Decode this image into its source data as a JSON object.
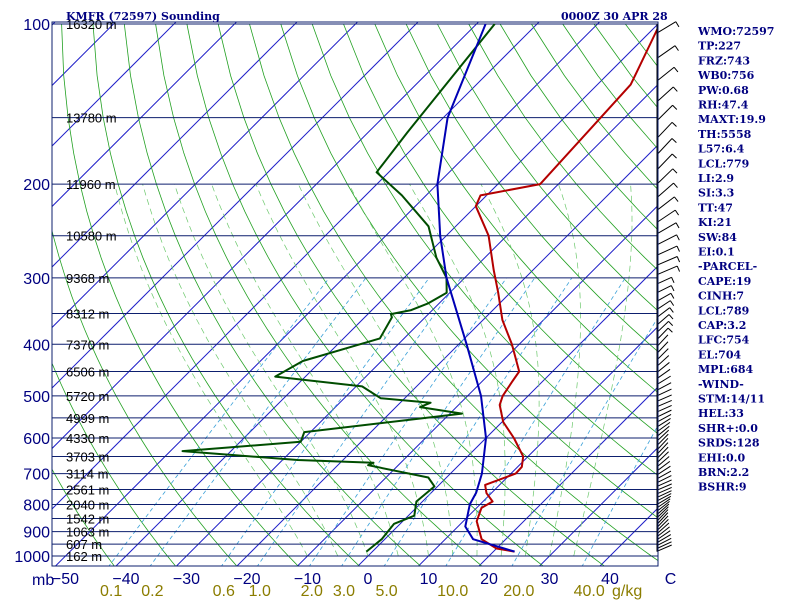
{
  "chart_data": {
    "type": "line",
    "chart_kind": "skew-T log-P sounding",
    "title_left": "KMFR (72597) Sounding",
    "title_right": "0000Z 30 APR 28",
    "pressure_unit_label": "mb",
    "mixing_ratio_unit_label": "g/kg",
    "pressure_range": [
      1000,
      100
    ],
    "temperature_range": [
      -50,
      50
    ],
    "pressure_ticks": [
      100,
      200,
      300,
      400,
      500,
      600,
      700,
      800,
      900,
      1000
    ],
    "temperature_ticks": [
      {
        "v": -50,
        "label": "−50"
      },
      {
        "v": -40,
        "label": "−40"
      },
      {
        "v": -30,
        "label": "−30"
      },
      {
        "v": -20,
        "label": "−20"
      },
      {
        "v": -10,
        "label": "−10"
      },
      {
        "v": 0,
        "label": "0"
      },
      {
        "v": 10,
        "label": "10"
      },
      {
        "v": 20,
        "label": "20"
      },
      {
        "v": 30,
        "label": "30"
      },
      {
        "v": 40,
        "label": "40"
      },
      {
        "v": 50,
        "label": "C"
      }
    ],
    "mixing_ratio_ticks": [
      {
        "v": 0.1,
        "label": "0.1"
      },
      {
        "v": 0.2,
        "label": "0.2"
      },
      {
        "v": 0.6,
        "label": "0.6"
      },
      {
        "v": 1.0,
        "label": "1.0"
      },
      {
        "v": 2.0,
        "label": "2.0"
      },
      {
        "v": 3.0,
        "label": "3.0"
      },
      {
        "v": 5.0,
        "label": "5.0"
      },
      {
        "v": 10.0,
        "label": "10.0"
      },
      {
        "v": 20.0,
        "label": "20.0"
      },
      {
        "v": 40.0,
        "label": "40.0"
      }
    ],
    "height_levels": [
      {
        "p": 100,
        "label": "16320 m"
      },
      {
        "p": 150,
        "label": "13780 m"
      },
      {
        "p": 200,
        "label": "11960 m"
      },
      {
        "p": 250,
        "label": "10580 m"
      },
      {
        "p": 300,
        "label": "9368 m"
      },
      {
        "p": 350,
        "label": "8312 m"
      },
      {
        "p": 400,
        "label": "7370 m"
      },
      {
        "p": 450,
        "label": "6506 m"
      },
      {
        "p": 500,
        "label": "5720 m"
      },
      {
        "p": 550,
        "label": "4999 m"
      },
      {
        "p": 600,
        "label": "4330 m"
      },
      {
        "p": 650,
        "label": "3703 m"
      },
      {
        "p": 700,
        "label": "3114 m"
      },
      {
        "p": 750,
        "label": "2561 m"
      },
      {
        "p": 800,
        "label": "2040 m"
      },
      {
        "p": 850,
        "label": "1542 m"
      },
      {
        "p": 900,
        "label": "1063 m"
      },
      {
        "p": 950,
        "label": "607 m"
      },
      {
        "p": 1000,
        "label": "162 m"
      }
    ],
    "series": [
      {
        "kind": "temperature",
        "color": "#b40000",
        "points": [
          [
            981,
            23.5
          ],
          [
            968,
            20.0
          ],
          [
            930,
            16.0
          ],
          [
            860,
            12.2
          ],
          [
            812,
            10.8
          ],
          [
            790,
            11.6
          ],
          [
            762,
            9.2
          ],
          [
            735,
            7.6
          ],
          [
            700,
            10.8
          ],
          [
            680,
            10.7
          ],
          [
            650,
            9.2
          ],
          [
            600,
            4.6
          ],
          [
            560,
            0.2
          ],
          [
            520,
            -3.2
          ],
          [
            500,
            -4.2
          ],
          [
            470,
            -5.0
          ],
          [
            450,
            -5.5
          ],
          [
            400,
            -11.2
          ],
          [
            360,
            -16.8
          ],
          [
            320,
            -22.0
          ],
          [
            290,
            -26.5
          ],
          [
            250,
            -33.0
          ],
          [
            220,
            -40.0
          ],
          [
            210,
            -41.0
          ],
          [
            200,
            -33.0
          ],
          [
            150,
            -34.0
          ],
          [
            130,
            -34.5
          ],
          [
            100,
            -39.7
          ]
        ]
      },
      {
        "kind": "dewpoint",
        "color": "#004d00",
        "points": [
          [
            981,
            -1.0
          ],
          [
            930,
            -0.5
          ],
          [
            870,
            -1.0
          ],
          [
            840,
            1.0
          ],
          [
            790,
            -1.0
          ],
          [
            740,
            -0.5
          ],
          [
            712,
            -3.0
          ],
          [
            675,
            -15.0
          ],
          [
            668,
            -14.5
          ],
          [
            660,
            -27.5
          ],
          [
            635,
            -48.0
          ],
          [
            610,
            -30.0
          ],
          [
            585,
            -31.0
          ],
          [
            540,
            -8.0
          ],
          [
            525,
            -16.0
          ],
          [
            515,
            -15.0
          ],
          [
            505,
            -24.0
          ],
          [
            480,
            -29.0
          ],
          [
            460,
            -45.0
          ],
          [
            430,
            -43.0
          ],
          [
            390,
            -34.0
          ],
          [
            356,
            -35.5
          ],
          [
            351,
            -36.2
          ],
          [
            345,
            -33.5
          ],
          [
            335,
            -31.8
          ],
          [
            320,
            -30.5
          ],
          [
            300,
            -33.0
          ],
          [
            275,
            -38.0
          ],
          [
            240,
            -44.5
          ],
          [
            210,
            -54.0
          ],
          [
            190,
            -62.0
          ],
          [
            160,
            -63.5
          ],
          [
            100,
            -67.0
          ]
        ]
      },
      {
        "kind": "parcel",
        "color": "#0000b4",
        "points": [
          [
            981,
            23.5
          ],
          [
            930,
            14.6
          ],
          [
            880,
            11.2
          ],
          [
            800,
            8.3
          ],
          [
            760,
            7.4
          ],
          [
            700,
            5.2
          ],
          [
            600,
            0.0
          ],
          [
            500,
            -7.8
          ],
          [
            400,
            -18.7
          ],
          [
            300,
            -33.0
          ],
          [
            250,
            -41.0
          ],
          [
            200,
            -50.0
          ],
          [
            150,
            -59.3
          ],
          [
            100,
            -68.5
          ]
        ]
      }
    ],
    "indices": [
      "WMO:72597",
      "TP:227",
      "FRZ:743",
      "WB0:756",
      "PW:0.68",
      "RH:47.4",
      "MAXT:19.9",
      "TH:5558",
      "L57:6.4",
      "LCL:779",
      "LI:2.9",
      "SI:3.3",
      "TT:47",
      "KI:21",
      "SW:84",
      "EI:0.1",
      "-PARCEL-",
      "CAPE:19",
      "CINH:7",
      "LCL:789",
      "CAP:3.2",
      "LFC:754",
      "EL:704",
      "MPL:684",
      "-WIND-",
      "STM:14/11",
      "HEL:33",
      "SHR+:0.0",
      "SRDS:128",
      "EHI:0.0",
      "BRN:2.2",
      "BSHR:9"
    ],
    "grid": true
  }
}
